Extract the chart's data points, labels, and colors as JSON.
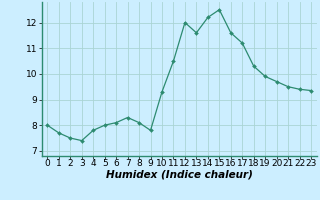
{
  "x": [
    0,
    1,
    2,
    3,
    4,
    5,
    6,
    7,
    8,
    9,
    10,
    11,
    12,
    13,
    14,
    15,
    16,
    17,
    18,
    19,
    20,
    21,
    22,
    23
  ],
  "y": [
    8.0,
    7.7,
    7.5,
    7.4,
    7.8,
    8.0,
    8.1,
    8.3,
    8.1,
    7.8,
    9.3,
    10.5,
    12.0,
    11.6,
    12.2,
    12.5,
    11.6,
    11.2,
    10.3,
    9.9,
    9.7,
    9.5,
    9.4,
    9.35
  ],
  "line_color": "#2d8b70",
  "marker": "D",
  "marker_size": 2.0,
  "bg_color": "#cceeff",
  "grid_color": "#aad4d4",
  "xlabel": "Humidex (Indice chaleur)",
  "xlim": [
    -0.5,
    23.5
  ],
  "ylim": [
    6.8,
    12.8
  ],
  "yticks": [
    7,
    8,
    9,
    10,
    11,
    12
  ],
  "xticks": [
    0,
    1,
    2,
    3,
    4,
    5,
    6,
    7,
    8,
    9,
    10,
    11,
    12,
    13,
    14,
    15,
    16,
    17,
    18,
    19,
    20,
    21,
    22,
    23
  ],
  "xlabel_fontsize": 7.5,
  "tick_fontsize": 6.5
}
